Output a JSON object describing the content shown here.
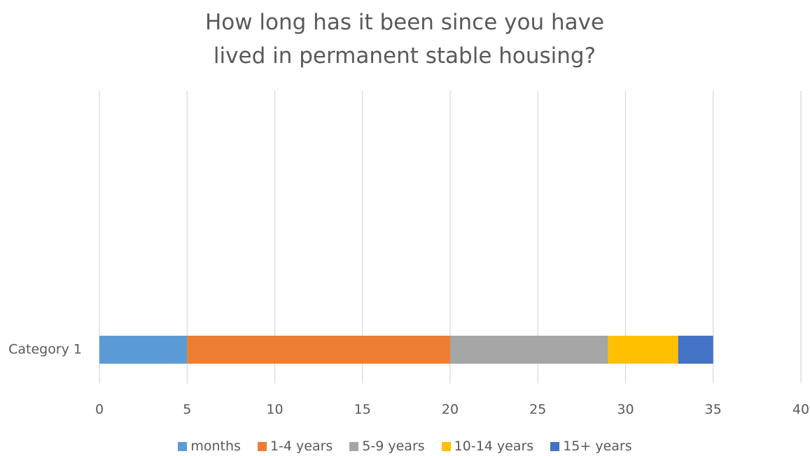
{
  "chart_data": {
    "type": "stacked_bar_horizontal",
    "title": "How long has it been since you have lived in permanent stable housing?",
    "categories": [
      "Category 1"
    ],
    "series": [
      {
        "name": "months",
        "color": "#5b9bd5",
        "values": [
          5
        ]
      },
      {
        "name": "1-4 years",
        "color": "#ed7d31",
        "values": [
          15
        ]
      },
      {
        "name": "5-9 years",
        "color": "#a5a5a5",
        "values": [
          9
        ]
      },
      {
        "name": "10-14 years",
        "color": "#ffc000",
        "values": [
          4
        ]
      },
      {
        "name": "15+ years",
        "color": "#4472c4",
        "values": [
          2
        ]
      }
    ],
    "xlim": [
      0,
      40
    ],
    "xticks": [
      0,
      5,
      10,
      15,
      20,
      25,
      30,
      35,
      40
    ],
    "grid": true,
    "legend": "bottom"
  }
}
